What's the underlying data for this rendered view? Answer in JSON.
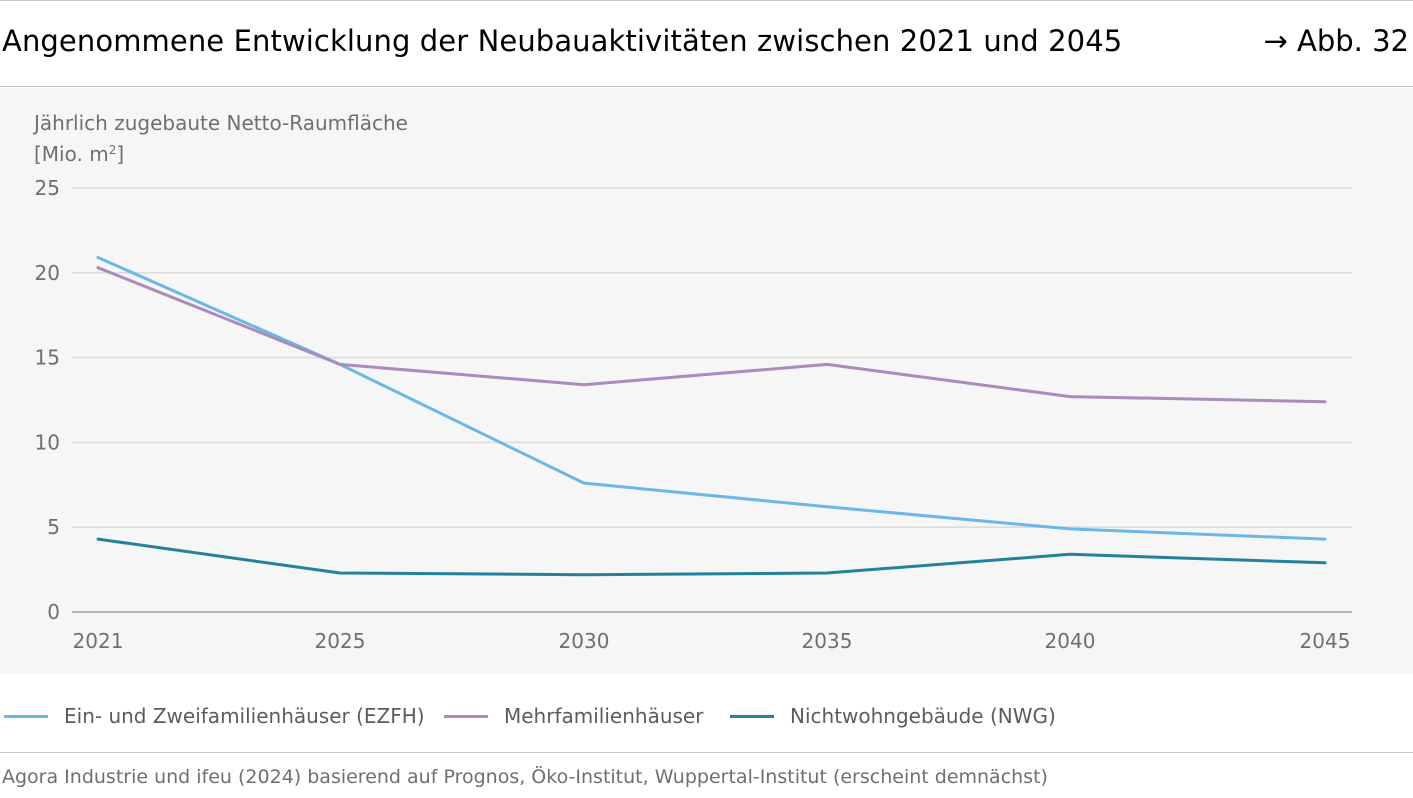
{
  "header": {
    "title": "Angenommene Entwicklung der Neubauaktivitäten zwischen 2021 und 2045",
    "figure_ref": "→ Abb. 32"
  },
  "chart_data": {
    "type": "line",
    "ylabel_line1": "Jährlich zugebaute Netto-Raumfläche",
    "ylabel_unit_prefix": "[Mio. m",
    "ylabel_unit_sup": "2",
    "ylabel_unit_suffix": "]",
    "x": [
      2021,
      2025,
      2030,
      2035,
      2040,
      2045
    ],
    "x_tick_labels": [
      "2021",
      "2025",
      "2030",
      "2035",
      "2040",
      "2045"
    ],
    "y_ticks": [
      0,
      5,
      10,
      15,
      20,
      25
    ],
    "y_tick_labels": [
      "0",
      "5",
      "10",
      "15",
      "20",
      "25"
    ],
    "ylim": [
      0,
      25
    ],
    "grid": true,
    "legend_position": "bottom",
    "series": [
      {
        "name": "Ein- und Zweifamilienhäuser (EZFH)",
        "color": "#6bb8e6",
        "values": [
          20.9,
          14.6,
          7.6,
          6.2,
          4.9,
          4.3
        ]
      },
      {
        "name": "Mehrfamilienhäuser",
        "color": "#a98bbe",
        "values": [
          20.3,
          14.6,
          13.4,
          14.6,
          12.7,
          12.4
        ]
      },
      {
        "name": "Nichtwohngebäude (NWG)",
        "color": "#24839b",
        "values": [
          4.3,
          2.3,
          2.2,
          2.3,
          3.4,
          2.9
        ]
      }
    ]
  },
  "source": "Agora Industrie und ifeu (2024) basierend auf Prognos, Öko-Institut, Wuppertal-Institut (erscheint demnächst)"
}
